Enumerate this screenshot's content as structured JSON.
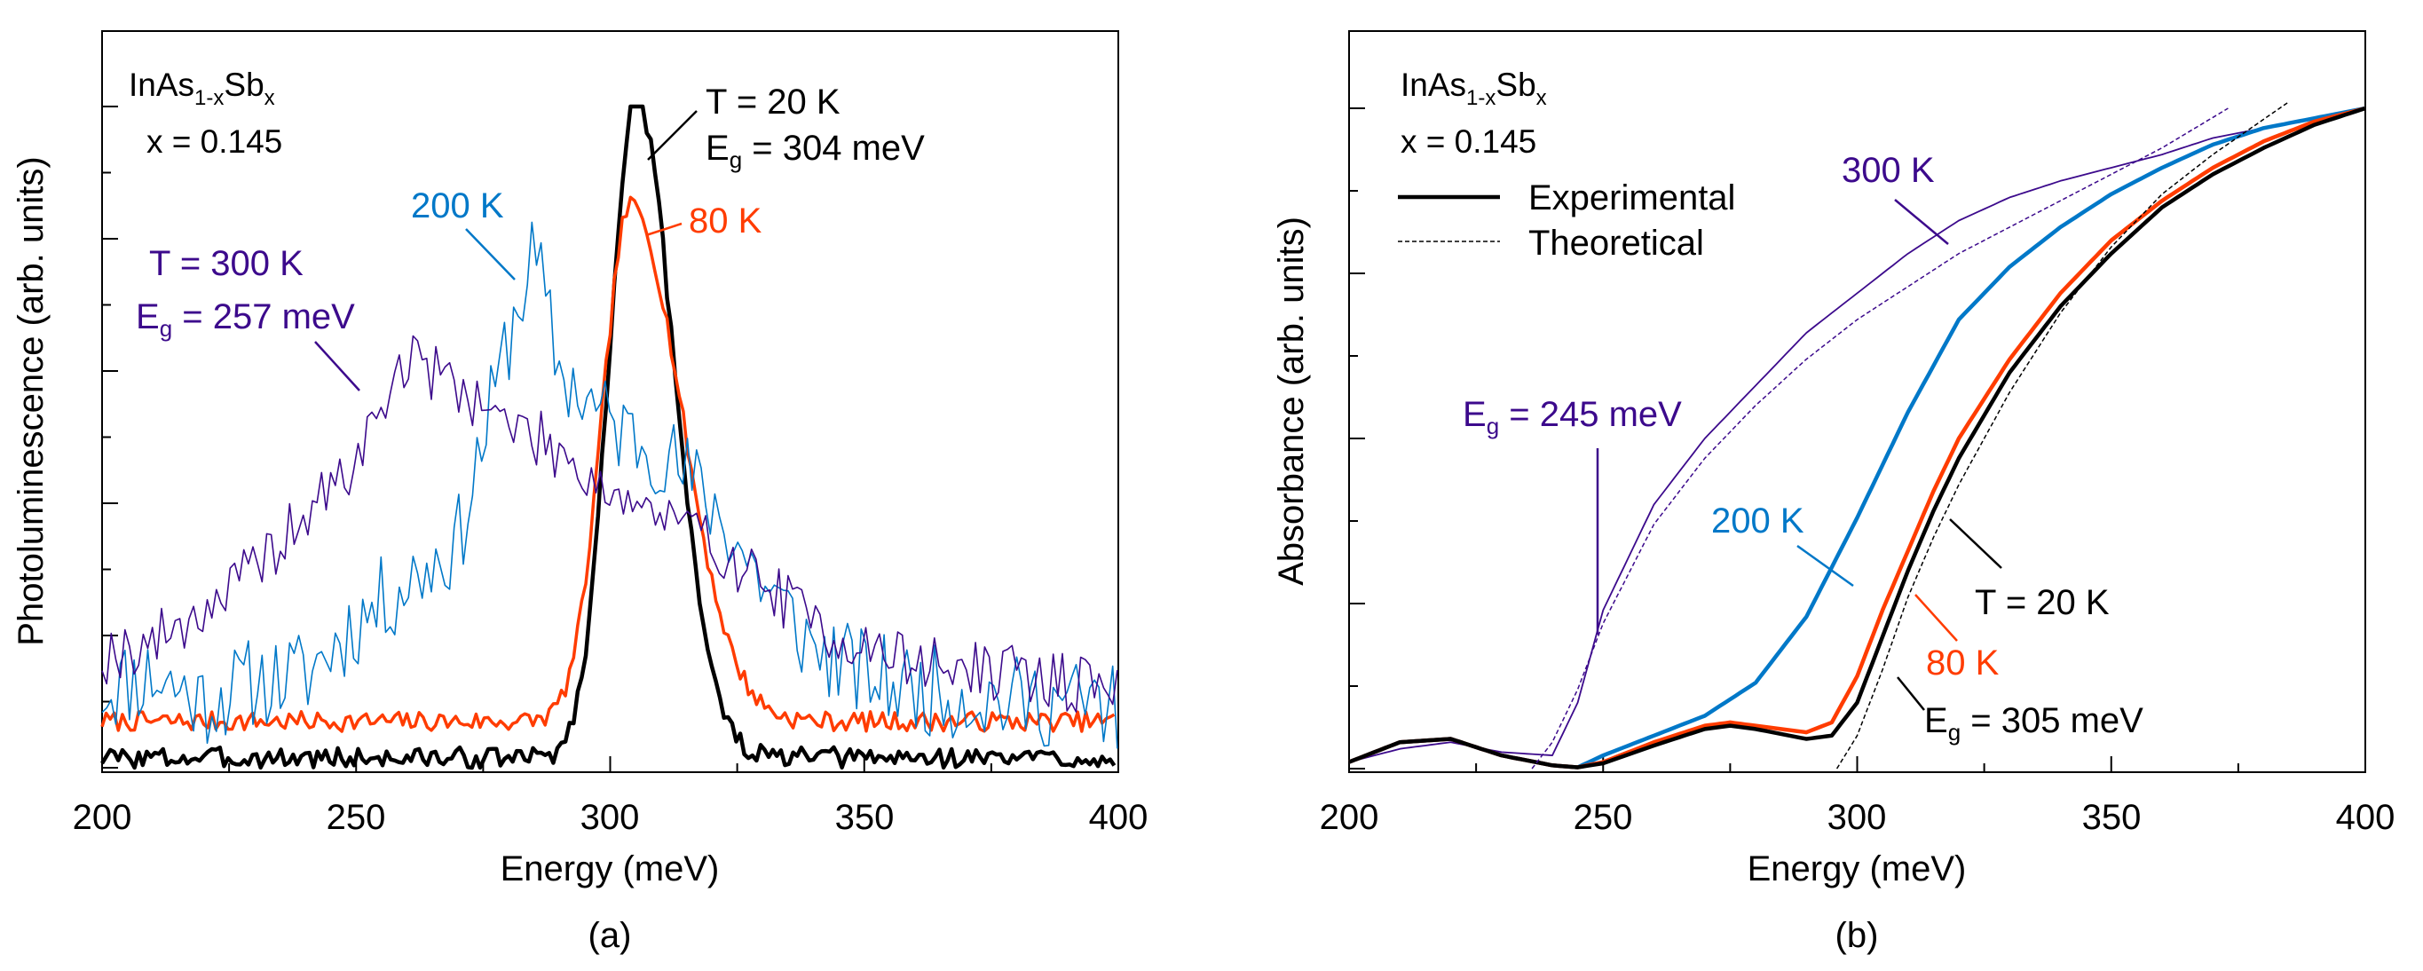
{
  "colors": {
    "axis": "#000000",
    "k20": "#000000",
    "k80": "#ff3c00",
    "k200": "#0078c8",
    "k300": "#3c0a8c"
  },
  "chart_data": [
    {
      "id": "a",
      "type": "line",
      "caption": "(a)",
      "xlabel": "Energy (meV)",
      "ylabel": "Photoluminescence (arb. units)",
      "xlim": [
        200,
        400
      ],
      "ylim": [
        0,
        1.0
      ],
      "xticks": [
        200,
        250,
        300,
        350,
        400
      ],
      "x_tick_labels": [
        "200",
        "250",
        "300",
        "350",
        "400"
      ],
      "yticks": [
        0,
        0.2,
        0.4,
        0.6,
        0.8,
        1.0
      ],
      "material_prefix": "InAs",
      "material_sub1": "1-x",
      "material_mid": "Sb",
      "material_sub2": "x",
      "composition": "x = 0.145",
      "series": [
        {
          "name": "T = 20 K",
          "color_key": "k20",
          "peak": 305,
          "sigma_l": 5.2,
          "sigma_r": 7.5,
          "height": 1.0,
          "baseline": 0.015,
          "noise": 0.016,
          "width": 4.5,
          "seed": 3
        },
        {
          "name": "80 K",
          "color_key": "k80",
          "peak": 304,
          "sigma_l": 5.5,
          "sigma_r": 10.0,
          "height": 0.78,
          "baseline": 0.07,
          "noise": 0.015,
          "width": 3.5,
          "seed": 7
        },
        {
          "name": "200 K",
          "color_key": "k200",
          "x": [
            200,
            210,
            220,
            230,
            240,
            250,
            260,
            270,
            280,
            285,
            290,
            300,
            310,
            320,
            330,
            340,
            350,
            360,
            370,
            380,
            390,
            400
          ],
          "values": [
            0.12,
            0.14,
            0.1,
            0.13,
            0.14,
            0.22,
            0.28,
            0.34,
            0.65,
            0.78,
            0.6,
            0.52,
            0.48,
            0.4,
            0.28,
            0.18,
            0.14,
            0.12,
            0.11,
            0.1,
            0.1,
            0.09
          ],
          "noise": 0.07,
          "width": 1.6,
          "seed": 11
        },
        {
          "name": "T = 300 K",
          "color_key": "k300",
          "x": [
            200,
            210,
            220,
            230,
            240,
            250,
            255,
            260,
            265,
            270,
            280,
            290,
            300,
            310,
            320,
            330,
            340,
            350,
            360,
            370,
            380,
            390,
            400
          ],
          "values": [
            0.17,
            0.19,
            0.24,
            0.3,
            0.38,
            0.46,
            0.55,
            0.62,
            0.6,
            0.58,
            0.52,
            0.48,
            0.42,
            0.38,
            0.34,
            0.28,
            0.22,
            0.18,
            0.16,
            0.15,
            0.14,
            0.13,
            0.12
          ],
          "noise": 0.045,
          "width": 1.6,
          "seed": 19
        }
      ],
      "annotations": [
        {
          "line1": "T = 20 K",
          "line2_main": "E",
          "line2_sub": "g",
          "line2_rest": " = 304 meV",
          "color_key": "k20"
        },
        {
          "line1": "80 K",
          "color_key": "k80"
        },
        {
          "line1": "200 K",
          "color_key": "k200"
        },
        {
          "line1": "T = 300 K",
          "line2_main": "E",
          "line2_sub": "g",
          "line2_rest": " = 257 meV",
          "color_key": "k300"
        }
      ]
    },
    {
      "id": "b",
      "type": "line",
      "caption": "(b)",
      "xlabel": "Energy (meV)",
      "ylabel": "Absorbance (arb. units)",
      "xlim": [
        200,
        400
      ],
      "ylim": [
        0,
        1.0
      ],
      "xticks": [
        200,
        250,
        300,
        350,
        400
      ],
      "x_tick_labels": [
        "200",
        "250",
        "300",
        "350",
        "400"
      ],
      "yticks": [
        0,
        0.25,
        0.5,
        0.75,
        1.0
      ],
      "material_prefix": "InAs",
      "material_sub1": "1-x",
      "material_mid": "Sb",
      "material_sub2": "x",
      "composition": "x = 0.145",
      "legend": [
        {
          "label": "Experimental",
          "style": "solid"
        },
        {
          "label": "Theoretical",
          "style": "dashed"
        }
      ],
      "series": [
        {
          "name": "300 K",
          "kind": "experimental",
          "color_key": "k300",
          "width": 1.8,
          "x": [
            200,
            210,
            220,
            230,
            240,
            245,
            250,
            260,
            270,
            280,
            290,
            300,
            310,
            320,
            330,
            340,
            350,
            360,
            370,
            380,
            390,
            400
          ],
          "values": [
            0.01,
            0.03,
            0.04,
            0.025,
            0.02,
            0.1,
            0.24,
            0.4,
            0.5,
            0.58,
            0.66,
            0.72,
            0.78,
            0.83,
            0.865,
            0.89,
            0.91,
            0.93,
            0.955,
            0.97,
            0.985,
            1.0
          ]
        },
        {
          "name": "200 K",
          "kind": "experimental",
          "color_key": "k200",
          "width": 4.5,
          "x": [
            200,
            210,
            220,
            230,
            240,
            245,
            250,
            260,
            270,
            280,
            290,
            300,
            310,
            320,
            330,
            340,
            350,
            360,
            370,
            380,
            390,
            400
          ],
          "values": [
            0.01,
            0.04,
            0.045,
            0.02,
            0.005,
            0.002,
            0.02,
            0.05,
            0.08,
            0.13,
            0.23,
            0.38,
            0.54,
            0.68,
            0.76,
            0.82,
            0.87,
            0.91,
            0.945,
            0.97,
            0.985,
            1.0
          ]
        },
        {
          "name": "80 K",
          "kind": "experimental",
          "color_key": "k80",
          "width": 4.5,
          "x": [
            200,
            210,
            220,
            230,
            240,
            245,
            250,
            260,
            270,
            275,
            280,
            290,
            295,
            300,
            305,
            310,
            315,
            320,
            330,
            340,
            350,
            360,
            370,
            380,
            390,
            400
          ],
          "values": [
            0.01,
            0.04,
            0.045,
            0.02,
            0.005,
            0.002,
            0.01,
            0.04,
            0.065,
            0.07,
            0.065,
            0.055,
            0.07,
            0.14,
            0.24,
            0.33,
            0.42,
            0.5,
            0.62,
            0.72,
            0.8,
            0.86,
            0.91,
            0.95,
            0.98,
            1.0
          ]
        },
        {
          "name": "T = 20 K",
          "kind": "experimental",
          "color_key": "k20",
          "width": 4.5,
          "x": [
            200,
            210,
            220,
            230,
            240,
            245,
            250,
            260,
            270,
            275,
            280,
            290,
            295,
            300,
            305,
            310,
            315,
            320,
            330,
            340,
            350,
            360,
            370,
            380,
            390,
            400
          ],
          "values": [
            0.01,
            0.04,
            0.045,
            0.02,
            0.005,
            0.002,
            0.008,
            0.035,
            0.06,
            0.065,
            0.06,
            0.045,
            0.05,
            0.1,
            0.2,
            0.3,
            0.39,
            0.47,
            0.6,
            0.7,
            0.78,
            0.85,
            0.9,
            0.94,
            0.975,
            1.0
          ]
        },
        {
          "name": "300 K theoretical",
          "kind": "theoretical",
          "color_key": "k300",
          "width": 1.5,
          "x": [
            236,
            240,
            245,
            250,
            260,
            270,
            280,
            290,
            300,
            310,
            320,
            330,
            340,
            350,
            360,
            373
          ],
          "values": [
            0.0,
            0.04,
            0.12,
            0.22,
            0.37,
            0.47,
            0.55,
            0.62,
            0.68,
            0.73,
            0.78,
            0.82,
            0.86,
            0.9,
            0.94,
            1.0
          ]
        },
        {
          "name": "20 K theoretical",
          "kind": "theoretical",
          "color_key": "k20",
          "width": 1.5,
          "x": [
            296,
            300,
            305,
            310,
            315,
            320,
            330,
            340,
            350,
            360,
            370,
            385
          ],
          "values": [
            0.0,
            0.05,
            0.15,
            0.26,
            0.35,
            0.43,
            0.57,
            0.69,
            0.79,
            0.87,
            0.93,
            1.01
          ]
        }
      ],
      "annotations": [
        {
          "line1": "300 K",
          "color_key": "k300"
        },
        {
          "line1_main": "E",
          "line1_sub": "g",
          "line1_rest": " = 245 meV",
          "color_key": "k300"
        },
        {
          "line1": "200 K",
          "color_key": "k200"
        },
        {
          "line1": "T = 20 K",
          "color_key": "k20"
        },
        {
          "line1": "80 K",
          "color_key": "k80"
        },
        {
          "line1_main": "E",
          "line1_sub": "g",
          "line1_rest": " = 305 meV",
          "color_key": "k20"
        }
      ]
    }
  ]
}
